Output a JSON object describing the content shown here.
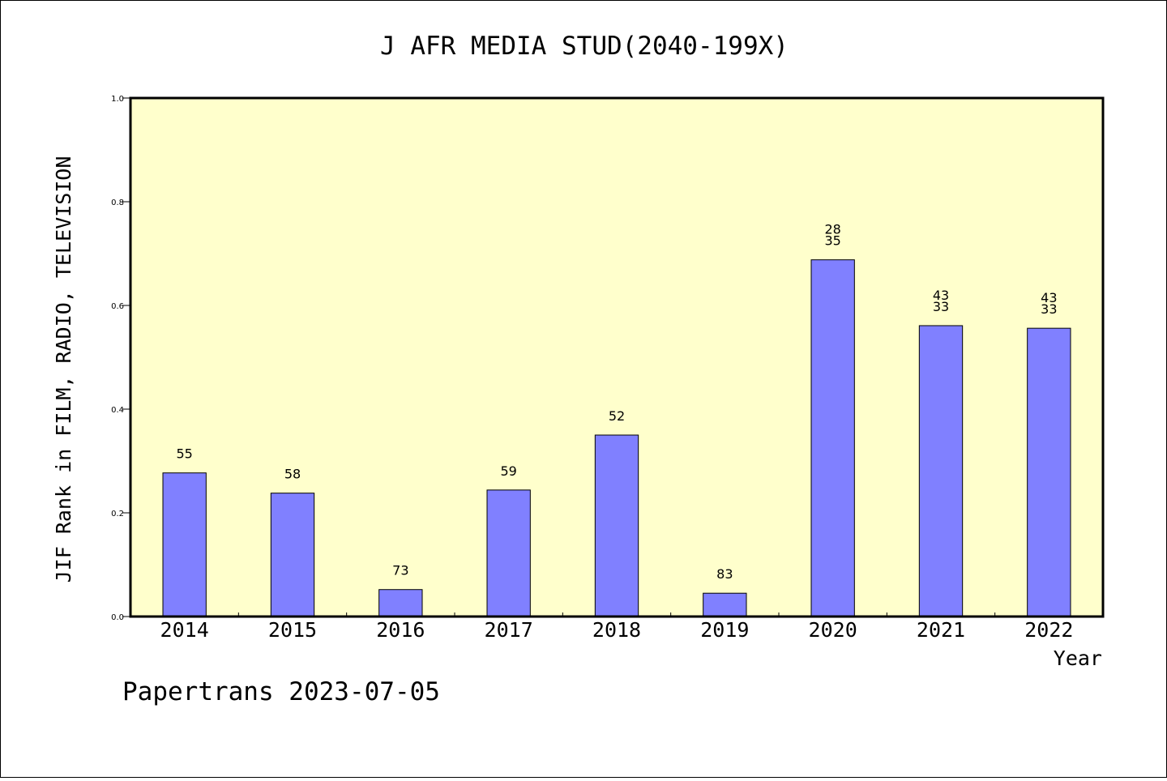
{
  "chart_data": {
    "type": "bar",
    "title": "J AFR MEDIA STUD(2040-199X)",
    "xlabel": "Year",
    "ylabel": "JIF Rank in FILM, RADIO, TELEVISION",
    "ylim": [
      0,
      1.0
    ],
    "yticks": [
      "0.0",
      "0.2",
      "0.4",
      "0.6",
      "0.8",
      "1.0"
    ],
    "yticks_values": [
      0.0,
      0.2,
      0.4,
      0.6,
      0.8,
      1.0
    ],
    "grid": false,
    "categories": [
      "2014",
      "2015",
      "2016",
      "2017",
      "2018",
      "2019",
      "2020",
      "2021",
      "2022"
    ],
    "values": [
      0.277,
      0.238,
      0.052,
      0.244,
      0.35,
      0.045,
      0.688,
      0.561,
      0.556
    ],
    "data_labels": [
      [
        "55"
      ],
      [
        "58"
      ],
      [
        "73"
      ],
      [
        "59"
      ],
      [
        "52"
      ],
      [
        "83"
      ],
      [
        "28",
        "35"
      ],
      [
        "43",
        "33"
      ],
      [
        "43",
        "33"
      ]
    ],
    "bar_color": "#8080ff",
    "plot_background": "#ffffcc"
  },
  "footer": "Papertrans 2023-07-05"
}
